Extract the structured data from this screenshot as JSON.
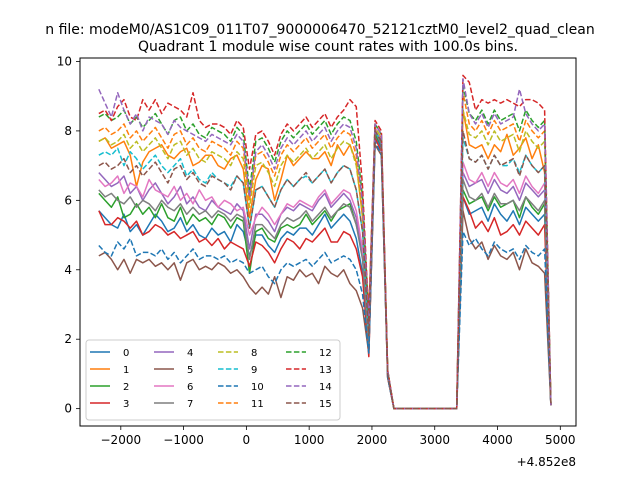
{
  "suptitle": "n file: modeM0/AS1C09_011T07_9000006470_52121cztM0_level2_quad_clean",
  "chart_data": {
    "type": "line",
    "title": "Quadrant 1 module wise count rates with 100.0s bins.",
    "xlabel": "",
    "ylabel": "",
    "x_offset_label": "+4.852e8",
    "xlim": [
      -2650,
      5250
    ],
    "ylim": [
      -0.5,
      10.1
    ],
    "xticks": [
      -2000,
      -1000,
      0,
      1000,
      2000,
      3000,
      4000,
      5000
    ],
    "xtick_labels": [
      "−2000",
      "−1000",
      "0",
      "1000",
      "2000",
      "3000",
      "4000",
      "5000"
    ],
    "yticks": [
      0,
      2,
      4,
      6,
      8,
      10
    ],
    "ytick_labels": [
      "0",
      "2",
      "4",
      "6",
      "8",
      "10"
    ],
    "grid": false,
    "legend": {
      "position": "lower-left",
      "columns": 4
    },
    "x": [
      -2350,
      -2250,
      -2150,
      -2050,
      -1950,
      -1850,
      -1750,
      -1650,
      -1550,
      -1450,
      -1350,
      -1250,
      -1150,
      -1050,
      -950,
      -850,
      -750,
      -650,
      -550,
      -450,
      -350,
      -250,
      -150,
      -50,
      50,
      150,
      250,
      350,
      450,
      550,
      650,
      750,
      850,
      950,
      1050,
      1150,
      1250,
      1350,
      1450,
      1550,
      1650,
      1750,
      1850,
      1950,
      2050,
      2150,
      2250,
      2350,
      3250,
      3350,
      3450,
      3550,
      3650,
      3750,
      3850,
      3950,
      4050,
      4150,
      4250,
      4350,
      4450,
      4550,
      4650,
      4750,
      4850
    ],
    "series": [
      {
        "name": "0",
        "color": "#1f77b4",
        "dash": "solid",
        "values": [
          5.7,
          5.5,
          5.3,
          5.2,
          5.6,
          5.1,
          5.3,
          5.0,
          5.3,
          5.6,
          5.4,
          5.1,
          5.2,
          5.5,
          5.1,
          5.3,
          5.0,
          4.9,
          5.2,
          5.0,
          5.1,
          4.8,
          5.3,
          5.1,
          4.4,
          5.0,
          5.0,
          4.7,
          4.5,
          4.9,
          5.1,
          5.0,
          5.2,
          5.2,
          5.0,
          5.3,
          5.6,
          5.2,
          5.4,
          5.6,
          5.4,
          4.9,
          3.9,
          1.7,
          7.9,
          7.5,
          1.0,
          0.0,
          0.0,
          0.0,
          6.1,
          5.6,
          5.7,
          5.8,
          5.4,
          5.9,
          5.6,
          5.4,
          5.7,
          5.3,
          5.8,
          5.6,
          5.4,
          5.6,
          0.1
        ]
      },
      {
        "name": "1",
        "color": "#ff7f0e",
        "dash": "solid",
        "values": [
          7.7,
          7.8,
          7.5,
          7.6,
          7.7,
          7.3,
          6.4,
          7.1,
          7.4,
          7.5,
          7.6,
          7.3,
          7.2,
          7.4,
          7.5,
          7.0,
          7.1,
          7.3,
          7.3,
          7.0,
          6.9,
          7.2,
          7.3,
          6.9,
          5.5,
          6.6,
          7.0,
          6.9,
          6.0,
          6.6,
          7.3,
          7.0,
          7.2,
          7.4,
          7.2,
          7.2,
          7.4,
          7.0,
          7.6,
          7.3,
          7.6,
          7.1,
          5.5,
          2.8,
          8.0,
          7.8,
          1.1,
          0.0,
          0.0,
          0.0,
          8.6,
          7.6,
          7.5,
          7.6,
          7.2,
          7.6,
          7.4,
          7.9,
          7.3,
          7.5,
          7.8,
          7.2,
          7.6,
          6.8,
          0.1
        ]
      },
      {
        "name": "2",
        "color": "#2ca02c",
        "dash": "solid",
        "values": [
          6.2,
          6.0,
          5.8,
          6.1,
          5.5,
          5.6,
          5.9,
          5.6,
          5.8,
          5.5,
          5.9,
          5.5,
          5.4,
          5.8,
          5.3,
          5.6,
          5.4,
          5.5,
          5.3,
          5.6,
          5.5,
          5.2,
          5.5,
          5.4,
          3.9,
          5.1,
          5.2,
          4.9,
          4.8,
          5.2,
          5.3,
          5.2,
          5.3,
          5.6,
          5.3,
          5.5,
          5.7,
          5.4,
          5.7,
          5.8,
          5.9,
          5.3,
          4.5,
          1.9,
          7.9,
          7.6,
          1.0,
          0.0,
          0.0,
          0.0,
          6.3,
          5.9,
          6.0,
          6.1,
          5.7,
          6.1,
          5.8,
          5.9,
          6.0,
          5.5,
          6.1,
          5.8,
          5.6,
          5.9,
          0.1
        ]
      },
      {
        "name": "3",
        "color": "#d62728",
        "dash": "solid",
        "values": [
          5.7,
          5.3,
          5.3,
          5.5,
          5.4,
          5.2,
          5.4,
          5.0,
          5.1,
          5.3,
          5.2,
          5.0,
          5.1,
          4.9,
          5.0,
          5.1,
          4.8,
          4.9,
          4.7,
          4.9,
          4.6,
          4.8,
          4.7,
          4.6,
          4.1,
          4.8,
          4.7,
          4.5,
          4.2,
          4.6,
          4.9,
          4.8,
          4.6,
          4.9,
          4.8,
          5.0,
          5.2,
          4.8,
          4.8,
          5.1,
          5.0,
          4.6,
          3.8,
          1.5,
          7.8,
          7.4,
          0.9,
          0.0,
          0.0,
          0.0,
          6.1,
          5.7,
          5.2,
          5.4,
          5.1,
          5.5,
          5.0,
          5.1,
          5.3,
          5.0,
          5.4,
          5.2,
          5.0,
          5.3,
          0.1
        ]
      },
      {
        "name": "4",
        "color": "#9467bd",
        "dash": "solid",
        "values": [
          6.8,
          6.6,
          6.4,
          6.5,
          6.7,
          6.2,
          6.4,
          6.0,
          6.3,
          6.5,
          6.2,
          5.9,
          6.1,
          6.4,
          5.9,
          6.1,
          5.8,
          5.7,
          6.0,
          5.8,
          5.7,
          5.6,
          5.9,
          5.7,
          4.6,
          5.6,
          5.6,
          5.4,
          5.1,
          5.6,
          5.8,
          5.7,
          5.9,
          5.8,
          5.7,
          6.0,
          6.2,
          5.8,
          6.0,
          6.2,
          6.0,
          5.5,
          4.4,
          1.8,
          8.1,
          7.7,
          1.0,
          0.0,
          0.0,
          0.0,
          6.8,
          6.4,
          6.5,
          6.6,
          6.2,
          6.6,
          6.3,
          6.2,
          6.4,
          6.0,
          6.5,
          6.3,
          6.1,
          6.3,
          0.1
        ]
      },
      {
        "name": "5",
        "color": "#8c564b",
        "dash": "solid",
        "values": [
          4.4,
          4.5,
          4.3,
          4.0,
          4.3,
          3.9,
          4.3,
          4.2,
          4.3,
          4.1,
          4.2,
          4.0,
          4.2,
          3.7,
          4.2,
          4.3,
          4.0,
          4.1,
          4.0,
          4.2,
          4.1,
          3.9,
          4.0,
          3.8,
          3.5,
          3.3,
          3.5,
          3.3,
          3.8,
          3.2,
          3.8,
          3.7,
          4.0,
          3.8,
          3.9,
          3.6,
          4.1,
          3.9,
          3.8,
          4.0,
          3.6,
          3.4,
          2.9,
          1.6,
          7.6,
          7.3,
          0.9,
          0.0,
          0.0,
          0.0,
          5.7,
          4.9,
          4.6,
          4.8,
          4.3,
          4.7,
          4.4,
          4.3,
          4.5,
          4.0,
          4.6,
          4.2,
          4.1,
          3.9,
          0.1
        ]
      },
      {
        "name": "6",
        "color": "#e377c2",
        "dash": "solid",
        "values": [
          6.6,
          6.4,
          6.5,
          6.7,
          6.2,
          6.5,
          6.4,
          6.1,
          6.6,
          6.3,
          6.2,
          6.1,
          6.4,
          6.0,
          6.2,
          5.9,
          6.3,
          6.0,
          6.1,
          5.8,
          6.0,
          5.9,
          5.7,
          5.8,
          5.0,
          5.5,
          5.8,
          5.6,
          5.3,
          5.6,
          5.9,
          5.8,
          6.0,
          5.9,
          5.8,
          6.1,
          6.3,
          5.9,
          6.1,
          6.3,
          6.2,
          5.7,
          4.6,
          1.9,
          8.1,
          7.7,
          1.0,
          0.0,
          0.0,
          0.0,
          7.1,
          6.6,
          6.5,
          6.8,
          6.4,
          6.8,
          6.5,
          6.4,
          6.6,
          6.2,
          6.7,
          6.4,
          6.2,
          6.5,
          0.1
        ]
      },
      {
        "name": "7",
        "color": "#7f7f7f",
        "dash": "solid",
        "values": [
          6.3,
          6.1,
          6.2,
          6.0,
          5.9,
          6.1,
          5.8,
          6.0,
          5.9,
          5.7,
          6.0,
          5.8,
          5.7,
          5.9,
          5.6,
          5.8,
          5.6,
          5.7,
          5.5,
          5.7,
          5.6,
          5.4,
          5.6,
          5.5,
          4.3,
          5.3,
          5.3,
          5.1,
          4.9,
          5.3,
          5.5,
          5.4,
          5.5,
          5.7,
          5.4,
          5.6,
          5.8,
          5.5,
          5.7,
          5.9,
          5.8,
          5.3,
          4.3,
          1.8,
          8.0,
          7.6,
          1.0,
          0.0,
          0.0,
          0.0,
          6.6,
          6.1,
          6.0,
          6.2,
          5.8,
          6.2,
          5.9,
          5.9,
          6.0,
          5.7,
          6.1,
          5.9,
          5.7,
          6.0,
          0.1
        ]
      },
      {
        "name": "8",
        "color": "#bcbd22",
        "dash": "dashed",
        "values": [
          7.7,
          7.8,
          7.6,
          7.7,
          7.9,
          7.5,
          7.7,
          7.4,
          7.6,
          7.8,
          7.5,
          7.2,
          7.6,
          7.7,
          7.3,
          7.5,
          7.2,
          7.1,
          7.4,
          7.3,
          7.2,
          7.0,
          7.4,
          7.2,
          5.8,
          7.0,
          7.1,
          6.8,
          6.4,
          7.0,
          7.3,
          7.1,
          7.3,
          7.5,
          7.2,
          7.4,
          7.6,
          7.2,
          7.5,
          7.7,
          7.6,
          7.0,
          5.6,
          2.3,
          8.1,
          7.8,
          1.1,
          0.0,
          0.0,
          0.0,
          8.6,
          7.9,
          7.8,
          8.0,
          7.6,
          8.0,
          7.7,
          7.8,
          7.9,
          7.4,
          8.0,
          7.7,
          7.5,
          7.7,
          0.1
        ]
      },
      {
        "name": "9",
        "color": "#17becf",
        "dash": "dashed",
        "values": [
          7.3,
          7.4,
          7.3,
          7.5,
          7.0,
          7.4,
          7.2,
          6.9,
          7.1,
          7.3,
          7.0,
          6.8,
          7.0,
          7.2,
          6.7,
          6.9,
          6.6,
          6.5,
          6.8,
          6.6,
          6.5,
          6.4,
          6.7,
          6.5,
          5.2,
          6.3,
          6.4,
          6.1,
          5.8,
          6.3,
          6.6,
          6.4,
          6.6,
          6.7,
          6.5,
          6.7,
          6.9,
          6.5,
          6.8,
          7.0,
          6.9,
          6.3,
          5.1,
          2.1,
          8.0,
          7.7,
          1.0,
          0.0,
          0.0,
          0.0,
          7.8,
          7.2,
          7.1,
          7.3,
          6.9,
          7.3,
          7.0,
          7.0,
          7.2,
          6.8,
          7.3,
          7.0,
          6.8,
          7.0,
          0.1
        ]
      },
      {
        "name": "10",
        "color": "#1f77b4",
        "dash": "dashed",
        "values": [
          4.7,
          4.5,
          4.4,
          4.8,
          4.6,
          4.9,
          4.4,
          4.5,
          4.5,
          4.4,
          4.6,
          4.3,
          4.5,
          4.2,
          4.4,
          4.6,
          4.3,
          4.4,
          4.4,
          4.3,
          4.4,
          4.2,
          4.3,
          4.2,
          3.9,
          4.0,
          4.1,
          3.8,
          3.6,
          4.0,
          4.2,
          4.1,
          4.2,
          4.3,
          4.1,
          4.3,
          4.5,
          4.2,
          4.3,
          4.4,
          4.3,
          4.0,
          3.3,
          1.6,
          7.7,
          7.3,
          0.9,
          0.0,
          0.0,
          0.0,
          5.1,
          4.7,
          4.9,
          4.6,
          4.4,
          4.8,
          4.6,
          4.5,
          4.6,
          4.3,
          4.7,
          4.5,
          4.4,
          4.6,
          0.1
        ]
      },
      {
        "name": "11",
        "color": "#ff7f0e",
        "dash": "dashed",
        "values": [
          8.0,
          8.1,
          7.9,
          8.0,
          8.2,
          7.8,
          8.0,
          7.7,
          7.9,
          8.1,
          7.8,
          7.5,
          7.9,
          8.0,
          7.6,
          7.8,
          7.5,
          7.4,
          7.7,
          7.6,
          7.5,
          7.3,
          7.7,
          7.5,
          6.0,
          7.3,
          7.4,
          7.1,
          6.7,
          7.3,
          7.6,
          7.4,
          7.6,
          7.8,
          7.5,
          7.7,
          7.9,
          7.5,
          7.8,
          8.0,
          7.9,
          7.3,
          5.8,
          2.4,
          8.2,
          7.9,
          1.1,
          0.0,
          0.0,
          0.0,
          9.1,
          8.2,
          8.0,
          8.3,
          7.9,
          8.3,
          8.0,
          8.1,
          8.2,
          7.7,
          8.3,
          8.0,
          7.8,
          8.0,
          0.1
        ]
      },
      {
        "name": "12",
        "color": "#2ca02c",
        "dash": "dashed",
        "values": [
          8.4,
          8.5,
          8.3,
          8.4,
          8.6,
          8.2,
          8.4,
          8.1,
          8.3,
          8.5,
          8.2,
          7.9,
          8.3,
          8.4,
          8.0,
          8.2,
          7.9,
          7.8,
          8.1,
          8.0,
          7.9,
          7.7,
          8.1,
          7.9,
          6.3,
          7.7,
          7.8,
          7.5,
          7.1,
          7.7,
          8.0,
          7.8,
          8.0,
          8.2,
          7.9,
          8.1,
          8.3,
          7.9,
          8.2,
          8.4,
          8.3,
          7.7,
          6.1,
          2.5,
          8.2,
          7.9,
          1.1,
          0.0,
          0.0,
          0.0,
          9.3,
          8.5,
          8.3,
          8.6,
          8.2,
          8.6,
          8.3,
          8.4,
          8.5,
          8.0,
          8.6,
          8.3,
          8.1,
          8.3,
          0.1
        ]
      },
      {
        "name": "13",
        "color": "#d62728",
        "dash": "dashed",
        "values": [
          8.5,
          8.6,
          8.3,
          8.7,
          8.9,
          8.4,
          8.3,
          8.9,
          8.6,
          8.9,
          8.5,
          8.8,
          8.7,
          8.6,
          8.4,
          9.1,
          8.3,
          8.1,
          8.2,
          8.2,
          8.1,
          7.9,
          8.3,
          8.1,
          6.9,
          7.9,
          8.0,
          7.7,
          7.3,
          7.9,
          8.2,
          8.0,
          8.2,
          8.4,
          8.1,
          8.3,
          8.5,
          8.1,
          8.4,
          8.6,
          8.9,
          8.7,
          6.4,
          2.6,
          8.3,
          8.0,
          1.1,
          0.0,
          0.0,
          0.0,
          9.6,
          9.4,
          8.6,
          8.9,
          8.8,
          8.9,
          8.8,
          8.9,
          8.8,
          8.7,
          8.9,
          8.9,
          8.8,
          8.6,
          0.1
        ]
      },
      {
        "name": "14",
        "color": "#9467bd",
        "dash": "dashed",
        "values": [
          9.2,
          8.8,
          8.4,
          9.1,
          8.6,
          8.2,
          8.5,
          8.0,
          8.4,
          8.3,
          8.2,
          7.9,
          8.3,
          8.1,
          8.0,
          7.9,
          7.8,
          7.7,
          7.9,
          7.8,
          7.7,
          7.6,
          7.9,
          7.7,
          6.1,
          7.4,
          7.6,
          7.3,
          6.9,
          7.5,
          7.8,
          7.6,
          7.8,
          8.0,
          7.7,
          7.9,
          8.1,
          7.7,
          8.0,
          8.2,
          8.1,
          7.5,
          5.9,
          2.4,
          8.2,
          7.9,
          1.1,
          0.0,
          0.0,
          0.0,
          9.5,
          8.5,
          8.2,
          8.5,
          8.1,
          8.5,
          8.2,
          8.3,
          8.4,
          9.2,
          8.5,
          8.2,
          8.0,
          8.2,
          0.1
        ]
      },
      {
        "name": "15",
        "color": "#8c564b",
        "dash": "dashed",
        "values": [
          7.0,
          7.1,
          6.9,
          7.0,
          7.2,
          6.8,
          7.0,
          6.7,
          6.9,
          7.1,
          6.8,
          6.5,
          6.9,
          7.0,
          6.6,
          6.8,
          6.5,
          6.4,
          6.7,
          6.6,
          6.5,
          6.3,
          6.7,
          6.5,
          5.2,
          6.3,
          6.4,
          6.1,
          5.8,
          6.3,
          6.6,
          6.4,
          6.6,
          6.8,
          6.5,
          6.7,
          6.9,
          6.5,
          6.8,
          7.0,
          6.9,
          6.3,
          5.1,
          2.1,
          8.0,
          7.7,
          1.0,
          0.0,
          0.0,
          0.0,
          8.0,
          7.2,
          7.1,
          7.3,
          6.9,
          7.3,
          7.0,
          7.1,
          7.2,
          6.7,
          7.3,
          7.0,
          6.8,
          7.0,
          0.1
        ]
      }
    ]
  }
}
